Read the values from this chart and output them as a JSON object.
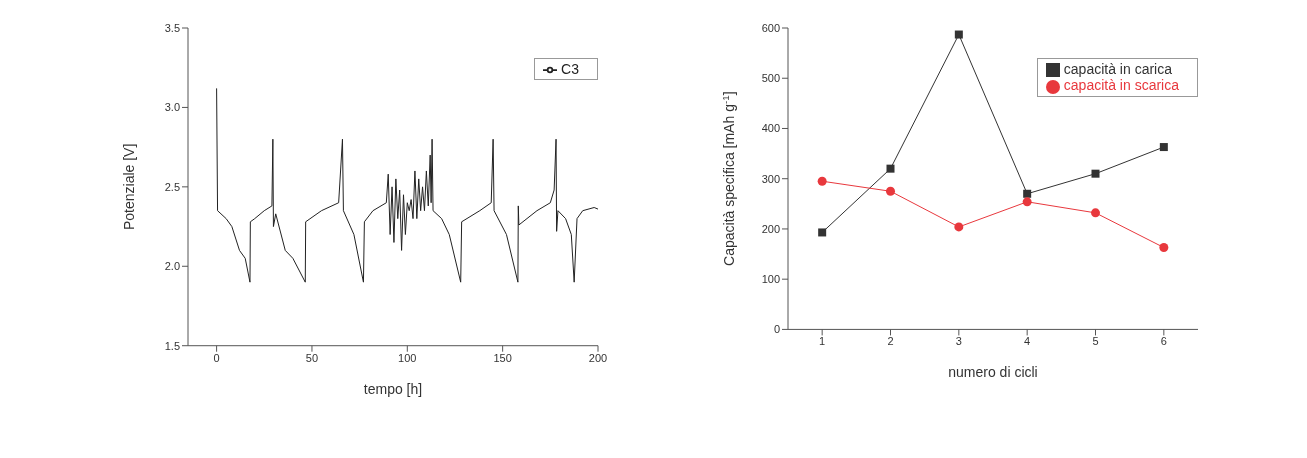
{
  "chart_data": [
    {
      "type": "line",
      "xlabel": "tempo [h]",
      "ylabel": "Potenziale [V]",
      "xlim": [
        -15,
        200
      ],
      "xticks": [
        0,
        50,
        100,
        150,
        200
      ],
      "ylim": [
        1.5,
        3.5
      ],
      "yticks": [
        1.5,
        {
          "value": 2,
          "label": "2.0"
        },
        2.5,
        {
          "value": 3,
          "label": "3.0"
        },
        3.5
      ],
      "grid": false,
      "legend": "top right",
      "marker": "none",
      "series": [
        {
          "name": "C3",
          "color": "#222222",
          "x": [
            0,
            0.5,
            5,
            8,
            12,
            15,
            17.5,
            17.7,
            20,
            25,
            29,
            29.5,
            29.8,
            31,
            36,
            40,
            46.5,
            46.7,
            55,
            64,
            66,
            66.5,
            72,
            77,
            77.5,
            82,
            89,
            90,
            91,
            92,
            93,
            94,
            95,
            96,
            97,
            98,
            99,
            100,
            101,
            102,
            103,
            104,
            105,
            106,
            107,
            108,
            109,
            110,
            111,
            112,
            112.5,
            113,
            113.5,
            118,
            122,
            128,
            128.5,
            138,
            144,
            145,
            145.5,
            152,
            158,
            158.2,
            158.5,
            168,
            175,
            177,
            178,
            178.3,
            179,
            183,
            186,
            187.5,
            189,
            192,
            198,
            200
          ],
          "values": [
            3.12,
            2.35,
            2.3,
            2.25,
            2.1,
            2.05,
            1.9,
            2.28,
            2.3,
            2.35,
            2.38,
            2.8,
            2.25,
            2.33,
            2.1,
            2.05,
            1.9,
            2.28,
            2.35,
            2.4,
            2.8,
            2.35,
            2.2,
            1.9,
            2.28,
            2.35,
            2.4,
            2.58,
            2.2,
            2.5,
            2.15,
            2.55,
            2.3,
            2.48,
            2.1,
            2.45,
            2.2,
            2.4,
            2.35,
            2.42,
            2.3,
            2.6,
            2.3,
            2.55,
            2.35,
            2.5,
            2.35,
            2.6,
            2.38,
            2.7,
            2.4,
            2.8,
            2.35,
            2.3,
            2.2,
            1.9,
            2.28,
            2.35,
            2.4,
            2.8,
            2.35,
            2.2,
            1.9,
            2.38,
            2.26,
            2.35,
            2.4,
            2.48,
            2.8,
            2.22,
            2.35,
            2.3,
            2.2,
            1.9,
            2.3,
            2.35,
            2.37,
            2.36
          ]
        }
      ]
    },
    {
      "type": "line",
      "xlabel": "numero di cicli",
      "ylabel": "Capacità specifica [mAh g$^{-1}$]",
      "x": [
        1,
        2,
        3,
        4,
        5,
        6
      ],
      "xlim": [
        0.5,
        6.5
      ],
      "xticks": [
        1,
        2,
        3,
        4,
        5,
        6
      ],
      "ylim": [
        0,
        600
      ],
      "yticks": [
        0,
        100,
        200,
        300,
        400,
        500,
        600
      ],
      "grid": false,
      "legend": "top right",
      "series": [
        {
          "name": "capacità in carica",
          "color": "#333333",
          "marker": "square",
          "values": [
            193,
            320,
            587,
            270,
            310,
            363
          ]
        },
        {
          "name": "capacità in scarica",
          "color": "#e8383d",
          "marker": "circle",
          "values": [
            295,
            275,
            204,
            254,
            232,
            163
          ]
        }
      ]
    }
  ]
}
